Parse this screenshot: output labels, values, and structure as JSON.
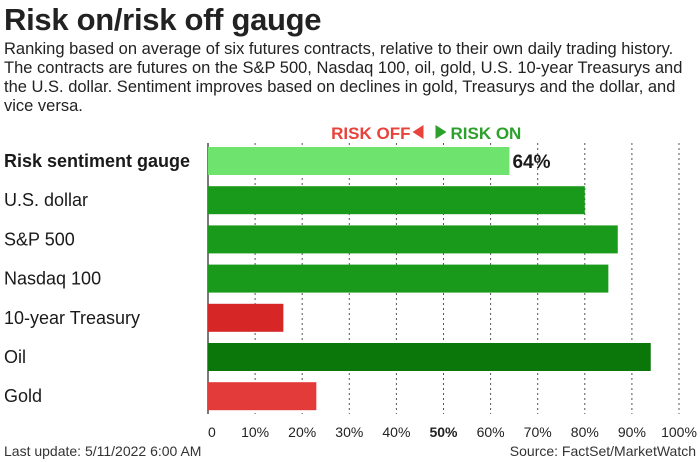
{
  "title": "Risk on/risk off gauge",
  "subtitle": "Ranking based on average of six futures contracts, relative to their own daily trading history. The contracts are futures on the S&P 500, Nasdaq 100, oil, gold, U.S. 10-year Treasurys and the U.S. dollar. Sentiment improves based on declines in gold, Treasurys and the dollar, and vice versa.",
  "legend": {
    "risk_off": "RISK OFF",
    "risk_on": "RISK ON",
    "risk_off_color": "#e8423a",
    "risk_on_color": "#2ca02c"
  },
  "footer": {
    "last_update": "Last update: 5/11/2022 6:00 AM",
    "source": "Source: FactSet/MarketWatch"
  },
  "chart_data": {
    "type": "bar",
    "orientation": "horizontal",
    "categories": [
      "Risk sentiment gauge",
      "U.S. dollar",
      "S&P 500",
      "Nasdaq 100",
      "10-year Treasury",
      "Oil",
      "Gold"
    ],
    "values": [
      64,
      80,
      87,
      85,
      16,
      94,
      23
    ],
    "colors": [
      "#6ee46e",
      "#1a9a1a",
      "#1a9a1a",
      "#1a9a1a",
      "#d62626",
      "#0b770b",
      "#e33a3a"
    ],
    "bold_category": "Risk sentiment gauge",
    "value_label": "64%",
    "xlim": [
      0,
      100
    ],
    "xticks": [
      "0",
      "10%",
      "20%",
      "30%",
      "40%",
      "50%",
      "60%",
      "70%",
      "80%",
      "90%",
      "100%"
    ],
    "bold_tick": "50%",
    "grid": true
  }
}
